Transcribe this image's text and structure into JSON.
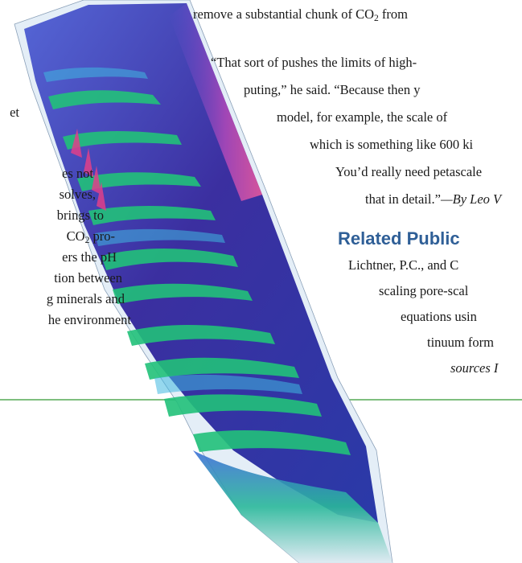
{
  "top_line": {
    "pre": "remove a substantial chunk of CO",
    "sub": "2",
    "post": " from"
  },
  "right_column": [
    "“That sort of pushes the limits of high-",
    "puting,” he said. “Because then y",
    "model, for example, the scale of",
    "which is something like 600 ki",
    "You’d really need petascale",
    "that in detail.”"
  ],
  "byline": "—By Leo V",
  "related_heading": "Related Public",
  "citation_lines": [
    "Lichtner, P.C., and C",
    "scaling pore-scal",
    "equations usin",
    "tinuum form",
    "sources I"
  ],
  "left_column": [
    {
      "pre": "et"
    },
    {
      "pre": "es not"
    },
    {
      "pre": "solves,"
    },
    {
      "pre": "brings to"
    },
    {
      "pre": "CO",
      "sub": "2",
      "post": " pro-"
    },
    {
      "pre": "ers the pH"
    },
    {
      "pre": "tion between"
    },
    {
      "pre": "g minerals and"
    },
    {
      "pre": "he environment"
    }
  ],
  "colors": {
    "rule": "#7fbf7f",
    "heading": "#2f5f97",
    "viz_bg": "#e4eef7",
    "viz_deep": "#3a2d9c",
    "viz_mid": "#4a5fc9",
    "viz_green": "#22c17a",
    "viz_cyan": "#3fb8e0",
    "viz_pink": "#e0408a"
  }
}
